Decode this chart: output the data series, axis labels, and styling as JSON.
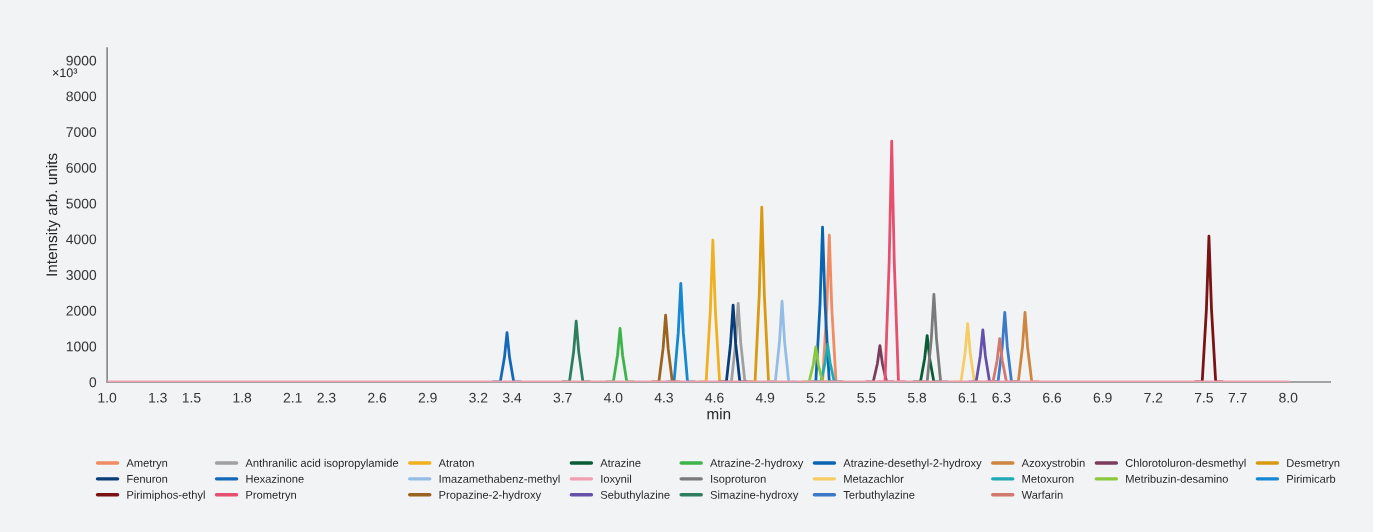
{
  "chart_data": {
    "type": "line",
    "xlabel": "min",
    "ylabel": "Intensity arb. units",
    "annotations": [
      "×10³"
    ],
    "xlim": [
      1.0,
      8.25
    ],
    "ylim": [
      0,
      9350
    ],
    "xticks": [
      {
        "value": 1,
        "label": "1.0"
      },
      1.3,
      1.5,
      1.8,
      2.1,
      2.3,
      2.6,
      2.9,
      3.2,
      3.4,
      3.7,
      {
        "value": 4,
        "label": "4.0"
      },
      4.3,
      4.6,
      4.9,
      5.2,
      5.5,
      5.8,
      6.1,
      6.3,
      6.6,
      6.9,
      7.2,
      7.5,
      7.7,
      {
        "value": 8,
        "label": "8.0"
      }
    ],
    "yticks": [
      0,
      1000,
      2000,
      3000,
      4000,
      5000,
      6000,
      7000,
      8000,
      9000
    ],
    "grid": false,
    "legend": "bottom",
    "marker": "none",
    "line_style": "solid",
    "series": [
      {
        "name": "Ametryn",
        "color": "#f08c64",
        "x": [
          5.2,
          5.24,
          5.265,
          5.28,
          5.295,
          5.32,
          5.36
        ],
        "values": [
          0,
          0,
          2050,
          4110,
          2050,
          0,
          0
        ]
      },
      {
        "name": "Anthranilic acid isopropylamide",
        "color": "#a0a0a0",
        "x": [
          4.66,
          4.7,
          4.725,
          4.74,
          4.755,
          4.78,
          4.82
        ],
        "values": [
          0,
          0,
          1100,
          2200,
          1100,
          0,
          0
        ]
      },
      {
        "name": "Atraton",
        "color": "#f0b020",
        "x": [
          4.51,
          4.55,
          4.575,
          4.59,
          4.605,
          4.63,
          4.67
        ],
        "values": [
          0,
          0,
          1990,
          3970,
          1990,
          0,
          0
        ]
      },
      {
        "name": "Atrazine",
        "color": "#0a5c36",
        "x": [
          5.78,
          5.82,
          5.845,
          5.86,
          5.875,
          5.9,
          5.94
        ],
        "values": [
          0,
          0,
          650,
          1300,
          650,
          0,
          0
        ]
      },
      {
        "name": "Atrazine-2-hydroxy",
        "color": "#3cb44b",
        "x": [
          3.96,
          4.0,
          4.025,
          4.04,
          4.055,
          4.08,
          4.12
        ],
        "values": [
          0,
          0,
          750,
          1500,
          750,
          0,
          0
        ]
      },
      {
        "name": "Atrazine-desethyl-2-hydroxy",
        "color": "#0a64b4",
        "x": [
          5.16,
          5.2,
          5.225,
          5.24,
          5.255,
          5.28,
          5.32
        ],
        "values": [
          0,
          0,
          2170,
          4330,
          2170,
          0,
          0
        ]
      },
      {
        "name": "Azoxystrobin",
        "color": "#cd853f",
        "x": [
          6.36,
          6.4,
          6.425,
          6.44,
          6.455,
          6.48,
          6.52
        ],
        "values": [
          0,
          0,
          980,
          1950,
          980,
          0,
          0
        ]
      },
      {
        "name": "Chlorotoluron-desmethyl",
        "color": "#7a3d5c",
        "x": [
          5.5,
          5.54,
          5.565,
          5.58,
          5.595,
          5.62,
          5.66
        ],
        "values": [
          0,
          0,
          510,
          1020,
          510,
          0,
          0
        ]
      },
      {
        "name": "Desmetryn",
        "color": "#d89a10",
        "x": [
          4.8,
          4.84,
          4.865,
          4.88,
          4.895,
          4.92,
          4.96
        ],
        "values": [
          0,
          0,
          2450,
          4890,
          2450,
          0,
          0
        ]
      },
      {
        "name": "Fenuron",
        "color": "#0a3c78",
        "x": [
          4.63,
          4.67,
          4.695,
          4.71,
          4.725,
          4.75,
          4.79
        ],
        "values": [
          0,
          0,
          1080,
          2150,
          1080,
          0,
          0
        ]
      },
      {
        "name": "Hexazinone",
        "color": "#1468b8",
        "x": [
          3.29,
          3.33,
          3.355,
          3.37,
          3.385,
          3.41,
          3.45
        ],
        "values": [
          0,
          0,
          690,
          1380,
          690,
          0,
          0
        ]
      },
      {
        "name": "Imazamethabenz-methyl",
        "color": "#94bde6",
        "x": [
          4.92,
          4.96,
          4.985,
          5.0,
          5.015,
          5.04,
          5.08
        ],
        "values": [
          0,
          0,
          1130,
          2260,
          1130,
          0,
          0
        ]
      },
      {
        "name": "Isoproturon",
        "color": "#7a7a7a",
        "x": [
          5.82,
          5.86,
          5.885,
          5.9,
          5.915,
          5.94,
          5.98
        ],
        "values": [
          0,
          0,
          1230,
          2450,
          1230,
          0,
          0
        ]
      },
      {
        "name": "Metazachlor",
        "color": "#f5cd64",
        "x": [
          6.02,
          6.06,
          6.085,
          6.1,
          6.115,
          6.14,
          6.18
        ],
        "values": [
          0,
          0,
          820,
          1630,
          820,
          0,
          0
        ]
      },
      {
        "name": "Metoxuron",
        "color": "#1eaab4",
        "x": [
          5.19,
          5.23,
          5.255,
          5.27,
          5.285,
          5.31,
          5.35
        ],
        "values": [
          0,
          0,
          530,
          1050,
          530,
          0,
          0
        ]
      },
      {
        "name": "Metribuzin-desamino",
        "color": "#8cc83c",
        "x": [
          5.12,
          5.16,
          5.185,
          5.2,
          5.215,
          5.24,
          5.28
        ],
        "values": [
          0,
          0,
          490,
          980,
          490,
          0,
          0
        ]
      },
      {
        "name": "Pirimicarb",
        "color": "#1488d2",
        "x": [
          4.32,
          4.36,
          4.385,
          4.4,
          4.415,
          4.44,
          4.48
        ],
        "values": [
          0,
          0,
          1380,
          2760,
          1380,
          0,
          0
        ]
      },
      {
        "name": "Pirimiphos-ethyl",
        "color": "#7a1414",
        "x": [
          7.45,
          7.49,
          7.515,
          7.53,
          7.545,
          7.57,
          7.61
        ],
        "values": [
          0,
          0,
          2040,
          4080,
          2040,
          0,
          0
        ]
      },
      {
        "name": "Prometryn",
        "color": "#e6506e",
        "x": [
          5.57,
          5.61,
          5.635,
          5.65,
          5.665,
          5.69,
          5.73
        ],
        "values": [
          0,
          0,
          3370,
          6740,
          3370,
          0,
          0
        ]
      },
      {
        "name": "Propazine-2-hydroxy",
        "color": "#9a6420",
        "x": [
          4.23,
          4.27,
          4.295,
          4.31,
          4.325,
          4.35,
          4.39
        ],
        "values": [
          0,
          0,
          940,
          1870,
          940,
          0,
          0
        ]
      },
      {
        "name": "Sebuthylazine",
        "color": "#6450a8",
        "x": [
          6.11,
          6.15,
          6.175,
          6.19,
          6.205,
          6.23,
          6.27
        ],
        "values": [
          0,
          0,
          730,
          1460,
          730,
          0,
          0
        ]
      },
      {
        "name": "Simazine-hydroxy",
        "color": "#2e7d5e",
        "x": [
          3.7,
          3.74,
          3.765,
          3.78,
          3.795,
          3.82,
          3.86
        ],
        "values": [
          0,
          0,
          850,
          1700,
          850,
          0,
          0
        ]
      },
      {
        "name": "Terbuthylazine",
        "color": "#3c7ac8",
        "x": [
          6.24,
          6.28,
          6.305,
          6.32,
          6.335,
          6.36,
          6.4
        ],
        "values": [
          0,
          0,
          980,
          1950,
          980,
          0,
          0
        ]
      },
      {
        "name": "Warfarin",
        "color": "#d2786e",
        "x": [
          6.21,
          6.25,
          6.275,
          6.29,
          6.305,
          6.33,
          6.37
        ],
        "values": [
          0,
          0,
          610,
          1210,
          610,
          0,
          0
        ]
      },
      {
        "name": "Ioxynil",
        "color": "#f0a0b0",
        "x": [
          1.0,
          8.0
        ],
        "values": [
          0,
          0
        ]
      }
    ]
  }
}
